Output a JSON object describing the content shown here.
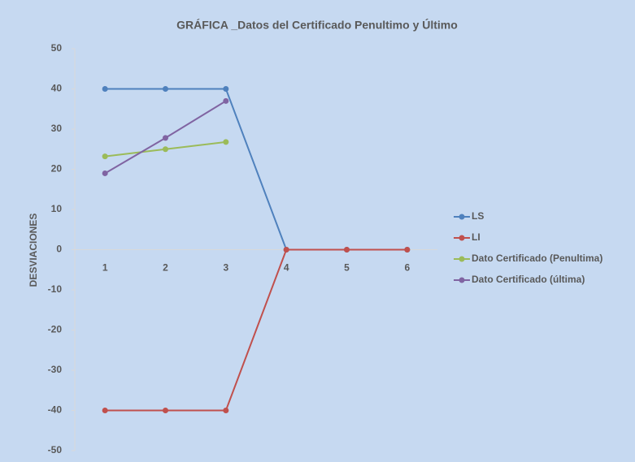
{
  "chart_data": {
    "type": "line",
    "title": "GRÁFICA _Datos del Certificado Penultimo y Último",
    "y_label": "DESVIACIONES",
    "categories": [
      "1",
      "2",
      "3",
      "4",
      "5",
      "6"
    ],
    "series": [
      {
        "name": "LS",
        "color": "#4f81bd",
        "values": [
          40,
          40,
          40,
          0,
          0,
          0
        ]
      },
      {
        "name": "LI",
        "color": "#c0504d",
        "values": [
          -40,
          -40,
          -40,
          0,
          0,
          0
        ]
      },
      {
        "name": "Dato Certificado (Penultima)",
        "color": "#9bbb59",
        "values": [
          23.2,
          25,
          26.8,
          null,
          null,
          null
        ]
      },
      {
        "name": "Dato Certificado (última)",
        "color": "#8064a2",
        "values": [
          19,
          27.8,
          37,
          null,
          null,
          null
        ]
      }
    ],
    "ylim": [
      -50,
      50
    ],
    "yticks": [
      -50,
      -40,
      -30,
      -20,
      -10,
      0,
      10,
      20,
      30,
      40,
      50
    ],
    "grid": false,
    "legend": "right"
  }
}
